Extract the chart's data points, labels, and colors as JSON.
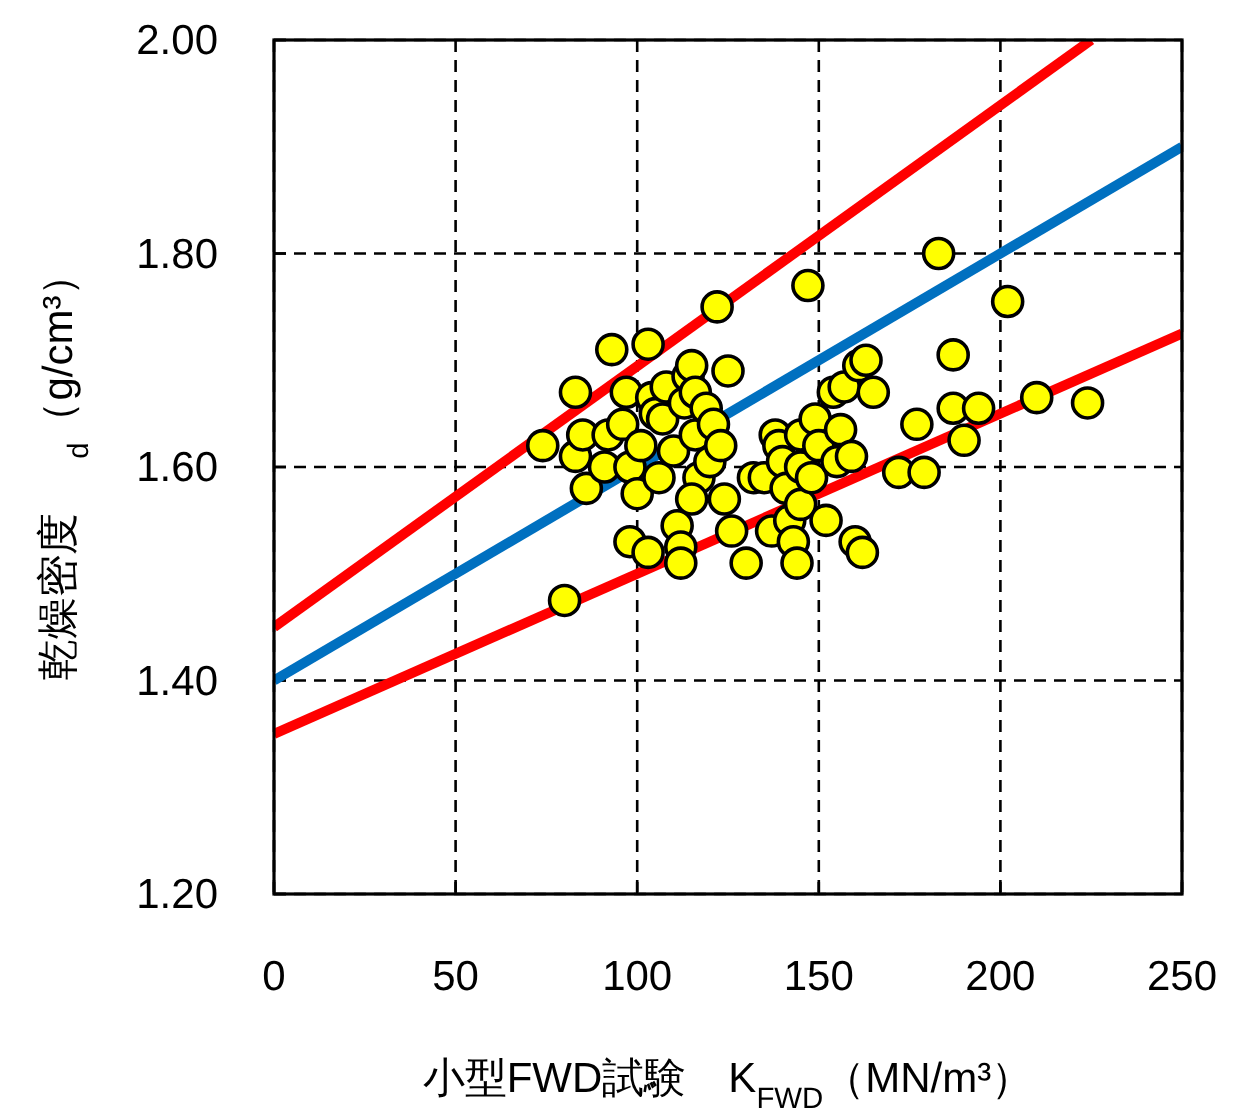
{
  "chart_data": {
    "type": "scatter",
    "xlabel": "小型FWD試験　K$_{FWD}$（MN/m³）",
    "ylabel": "乾燥密度　 $_{d}$（g/cm³）",
    "xlim": [
      0,
      250
    ],
    "ylim": [
      1.2,
      2.0
    ],
    "xticks": [
      0,
      50,
      100,
      150,
      200,
      250
    ],
    "yticks": [
      {
        "value": 1.2,
        "label": "1.20"
      },
      {
        "value": 1.4,
        "label": "1.40"
      },
      {
        "value": 1.6,
        "label": "1.60"
      },
      {
        "value": 1.8,
        "label": "1.80"
      },
      {
        "value": 2.0,
        "label": "2.00"
      }
    ],
    "grid": true,
    "series": [
      {
        "type": "line",
        "color": "#ff0000",
        "x": [
          0,
          225
        ],
        "values": [
          1.45,
          2.0
        ]
      },
      {
        "type": "line",
        "color": "#0070c0",
        "x": [
          0,
          250
        ],
        "values": [
          1.4,
          1.9
        ]
      },
      {
        "type": "line",
        "color": "#ff0000",
        "x": [
          0,
          250
        ],
        "values": [
          1.35,
          1.725
        ]
      },
      {
        "marker": "circle",
        "color": "#ffff00",
        "x": [
          74,
          80,
          83,
          83,
          86,
          85,
          91,
          93,
          92,
          96,
          97,
          98,
          100,
          98,
          101,
          103,
          104,
          105,
          103,
          107,
          106,
          108,
          110,
          111,
          112,
          112,
          113,
          114,
          115,
          116,
          116,
          117,
          115,
          119,
          120,
          121,
          122,
          123,
          124,
          125,
          126,
          130,
          132,
          135,
          137,
          138,
          139,
          140,
          141,
          142,
          143,
          144,
          145,
          145,
          145,
          147,
          148,
          149,
          150,
          152,
          154,
          155,
          156,
          157,
          159,
          160,
          162,
          161,
          163,
          165,
          172,
          177,
          179,
          183,
          187,
          187,
          190,
          194,
          202,
          210,
          224
        ],
        "values": [
          1.62,
          1.475,
          1.67,
          1.61,
          1.58,
          1.63,
          1.6,
          1.71,
          1.63,
          1.64,
          1.67,
          1.6,
          1.575,
          1.53,
          1.62,
          1.715,
          1.665,
          1.65,
          1.52,
          1.645,
          1.59,
          1.675,
          1.615,
          1.545,
          1.525,
          1.51,
          1.66,
          1.685,
          1.695,
          1.67,
          1.63,
          1.59,
          1.57,
          1.655,
          1.605,
          1.64,
          1.75,
          1.62,
          1.57,
          1.69,
          1.54,
          1.51,
          1.59,
          1.59,
          1.54,
          1.63,
          1.62,
          1.605,
          1.58,
          1.55,
          1.53,
          1.51,
          1.565,
          1.6,
          1.63,
          1.77,
          1.59,
          1.645,
          1.62,
          1.55,
          1.67,
          1.605,
          1.635,
          1.675,
          1.61,
          1.53,
          1.52,
          1.695,
          1.7,
          1.67,
          1.595,
          1.64,
          1.595,
          1.8,
          1.705,
          1.655,
          1.625,
          1.655,
          1.755,
          1.665,
          1.66
        ]
      }
    ]
  }
}
